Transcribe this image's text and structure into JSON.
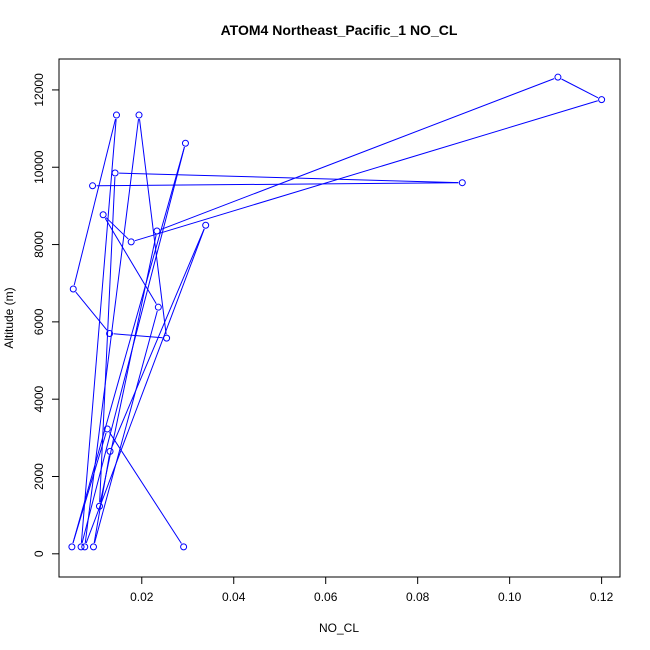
{
  "chart_data": {
    "type": "line",
    "title": "ATOM4 Northeast_Pacific_1 NO_CL",
    "xlabel": "NO_CL",
    "ylabel": "Altitude (m)",
    "xlim": [
      0.002,
      0.124
    ],
    "ylim": [
      -600,
      12800
    ],
    "xticks": [
      0.02,
      0.04,
      0.06,
      0.08,
      0.1,
      0.12
    ],
    "xtick_labels": [
      "0.02",
      "0.04",
      "0.06",
      "0.08",
      "0.10",
      "0.12"
    ],
    "yticks": [
      0,
      2000,
      4000,
      6000,
      8000,
      10000,
      12000
    ],
    "ytick_labels": [
      "0",
      "2000",
      "4000",
      "6000",
      "8000",
      "10000",
      "12000"
    ],
    "grid": false,
    "legend": "none",
    "marker": "open-circle",
    "color": "#0000ff",
    "series": [
      {
        "x": [
          0.0291,
          0.0125,
          0.0048,
          0.0295,
          0.0068,
          0.0145,
          0.0051,
          0.013,
          0.0254,
          0.0194,
          0.0076,
          0.0339,
          0.0131,
          0.0095,
          0.0236,
          0.0116,
          0.0177,
          0.12,
          0.1105,
          0.0233,
          0.0108,
          0.0142,
          0.0897,
          0.0093
        ],
        "y": [
          180,
          3230,
          180,
          10620,
          180,
          11350,
          6850,
          5700,
          5580,
          11350,
          180,
          8500,
          2650,
          180,
          6380,
          8770,
          8070,
          11750,
          12330,
          8350,
          1230,
          9850,
          9600,
          9520
        ]
      }
    ]
  }
}
